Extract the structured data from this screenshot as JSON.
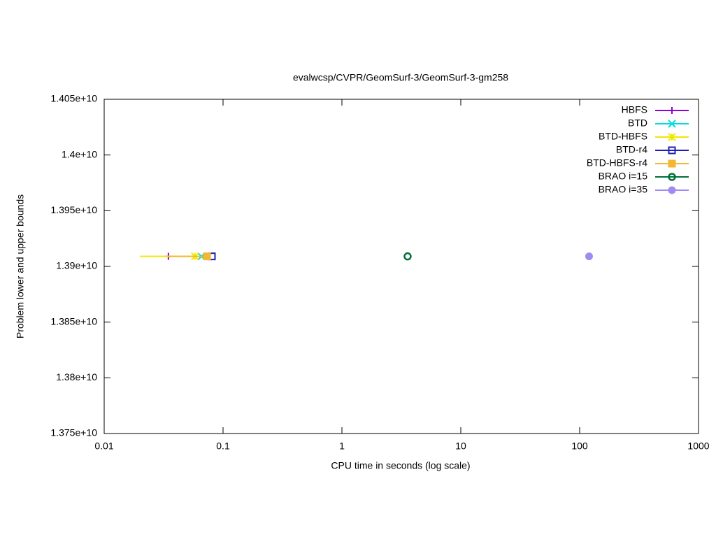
{
  "chart_data": {
    "type": "line",
    "title": "evalwcsp/CVPR/GeomSurf-3/GeomSurf-3-gm258",
    "x_label": "CPU time in seconds (log scale)",
    "y_label": "Problem lower and upper bounds",
    "x_log": true,
    "xlim": [
      0.01,
      1000
    ],
    "xticks": [
      0.01,
      0.1,
      1,
      10,
      100,
      1000
    ],
    "ylim": [
      13750000000,
      14050000000
    ],
    "yticks": [
      {
        "value": 13750000000,
        "label": "1.375e+10"
      },
      {
        "value": 13800000000,
        "label": "1.38e+10"
      },
      {
        "value": 13850000000,
        "label": "1.385e+10"
      },
      {
        "value": 13900000000,
        "label": "1.39e+10"
      },
      {
        "value": 13950000000,
        "label": "1.395e+10"
      },
      {
        "value": 14000000000,
        "label": "1.4e+10"
      },
      {
        "value": 14050000000,
        "label": "1.405e+10"
      }
    ],
    "legend": "top-right",
    "series": [
      {
        "name": "HBFS",
        "color": "#9400d3",
        "marker": "plus",
        "x": [
          0.0347
        ],
        "values": [
          13909000000
        ]
      },
      {
        "name": "BTD",
        "color": "#00dcdc",
        "marker": "cross",
        "x": [
          0.0658
        ],
        "values": [
          13909000000
        ]
      },
      {
        "name": "BTD-HBFS",
        "color": "#f0e800",
        "marker": "star",
        "x": [
          0.02,
          0.058
        ],
        "values": [
          13909000000,
          13909000000
        ]
      },
      {
        "name": "BTD-r4",
        "color": "#1f1fb4",
        "marker": "open-square",
        "x": [
          0.0805
        ],
        "values": [
          13909000000
        ]
      },
      {
        "name": "BTD-HBFS-r4",
        "color": "#f4b731",
        "marker": "square",
        "x": [
          0.035,
          0.0733
        ],
        "values": [
          13909000000,
          13909000000
        ]
      },
      {
        "name": "BRAO i=15",
        "color": "#00703a",
        "marker": "ring",
        "x": [
          3.57
        ],
        "values": [
          13909000000
        ]
      },
      {
        "name": "BRAO i=35",
        "color": "#a08cf0",
        "marker": "dot",
        "x": [
          120
        ],
        "values": [
          13909000000
        ]
      }
    ]
  }
}
